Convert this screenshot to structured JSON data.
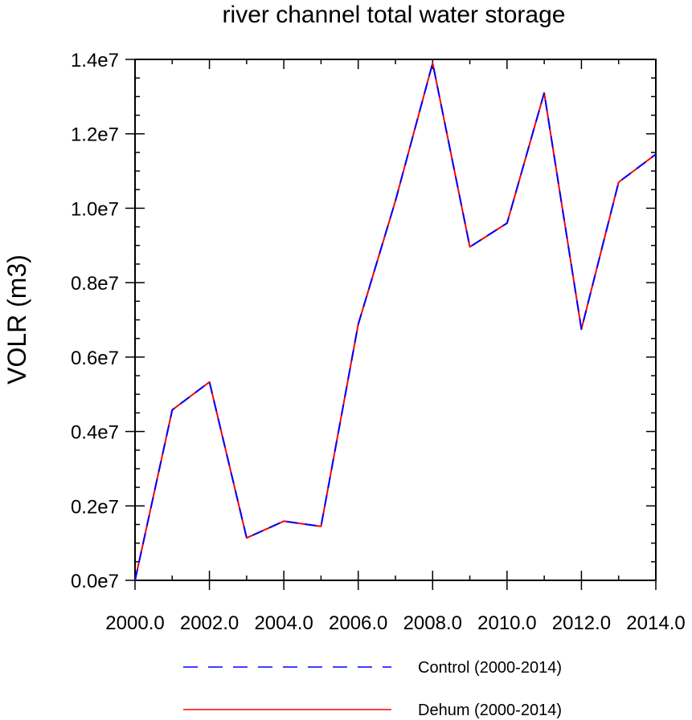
{
  "chart_data": {
    "type": "line",
    "title": "river channel total water storage",
    "xlabel": "",
    "ylabel": "VOLR  (m3)",
    "x": [
      2000,
      2001,
      2002,
      2003,
      2004,
      2005,
      2006,
      2007,
      2008,
      2009,
      2010,
      2011,
      2012,
      2013,
      2014
    ],
    "xlim": [
      2000,
      2014
    ],
    "ylim": [
      0,
      14000000
    ],
    "xticks": [
      2000,
      2002,
      2004,
      2006,
      2008,
      2010,
      2012,
      2014
    ],
    "xtick_labels": [
      "2000.0",
      "2002.0",
      "2004.0",
      "2006.0",
      "2008.0",
      "2010.0",
      "2012.0",
      "2014.0"
    ],
    "yticks": [
      0,
      2000000,
      4000000,
      6000000,
      8000000,
      10000000,
      12000000,
      14000000
    ],
    "ytick_labels": [
      "0.0e7",
      "0.2e7",
      "0.4e7",
      "0.6e7",
      "0.8e7",
      "1.0e7",
      "1.2e7",
      "1.4e7"
    ],
    "grid": false,
    "legend_position": "bottom",
    "series": [
      {
        "name": "Control (2000-2014)",
        "color": "#0000ff",
        "style": "dashed",
        "values": [
          0,
          4580000,
          5330000,
          1140000,
          1590000,
          1450000,
          6880000,
          10200000,
          13900000,
          8960000,
          9600000,
          13100000,
          6750000,
          10700000,
          11450000
        ]
      },
      {
        "name": "Dehum (2000-2014)",
        "color": "#ff0000",
        "style": "solid",
        "values": [
          0,
          4580000,
          5330000,
          1140000,
          1590000,
          1450000,
          6880000,
          10200000,
          13900000,
          8960000,
          9600000,
          13100000,
          6750000,
          10700000,
          11450000
        ]
      }
    ]
  }
}
